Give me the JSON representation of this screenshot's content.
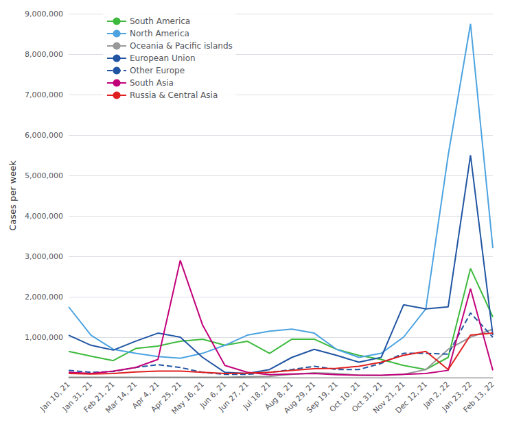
{
  "chart_data": {
    "type": "line",
    "ylabel": "Cases per week",
    "categories": [
      "Jan 10, 21",
      "Jan 31, 21",
      "Feb 21, 21",
      "Mar 14, 21",
      "Apr 4, 21",
      "Apr 25, 21",
      "May 16, 21",
      "Jun 6, 21",
      "Jun 27, 21",
      "Jul 18, 21",
      "Aug 8, 21",
      "Aug 29, 21",
      "Sep 19, 21",
      "Oct 10, 21",
      "Oct 31, 21",
      "Nov 21, 21",
      "Dec 12, 21",
      "Jan 2, 22",
      "Jan 23, 22",
      "Feb 13, 22"
    ],
    "series": [
      {
        "name": "South America",
        "color": "#3dba3d",
        "line_style": "solid",
        "values": [
          650000,
          530000,
          420000,
          720000,
          780000,
          900000,
          950000,
          800000,
          900000,
          600000,
          950000,
          950000,
          700000,
          550000,
          450000,
          300000,
          200000,
          500000,
          2700000,
          1500000
        ]
      },
      {
        "name": "North America",
        "color": "#4ca3e0",
        "line_style": "solid",
        "values": [
          1750000,
          1050000,
          700000,
          600000,
          520000,
          480000,
          600000,
          800000,
          1050000,
          1150000,
          1200000,
          1100000,
          700000,
          500000,
          600000,
          1000000,
          1700000,
          5500000,
          8750000,
          3200000
        ]
      },
      {
        "name": "Oceania & Pacific islands",
        "color": "#999999",
        "line_style": "solid",
        "values": [
          10000,
          10000,
          10000,
          10000,
          10000,
          10000,
          10000,
          10000,
          20000,
          30000,
          80000,
          120000,
          100000,
          60000,
          50000,
          80000,
          200000,
          700000,
          1000000,
          1200000
        ]
      },
      {
        "name": "European Union",
        "color": "#2155a3",
        "line_style": "solid",
        "values": [
          1050000,
          800000,
          680000,
          900000,
          1100000,
          1000000,
          500000,
          130000,
          100000,
          200000,
          500000,
          700000,
          550000,
          380000,
          500000,
          1800000,
          1700000,
          1750000,
          5500000,
          1050000
        ]
      },
      {
        "name": "Other Europe",
        "color": "#2155a3",
        "line_style": "dashed",
        "values": [
          180000,
          130000,
          150000,
          250000,
          320000,
          250000,
          130000,
          80000,
          80000,
          130000,
          200000,
          280000,
          200000,
          200000,
          350000,
          600000,
          600000,
          580000,
          1600000,
          1000000
        ]
      },
      {
        "name": "South Asia",
        "color": "#c2007a",
        "line_style": "solid",
        "values": [
          130000,
          100000,
          160000,
          250000,
          450000,
          2900000,
          1300000,
          300000,
          130000,
          70000,
          90000,
          100000,
          70000,
          60000,
          60000,
          80000,
          100000,
          180000,
          2200000,
          180000
        ]
      },
      {
        "name": "Russia & Central Asia",
        "color": "#e02020",
        "line_style": "solid",
        "values": [
          100000,
          90000,
          100000,
          140000,
          160000,
          160000,
          130000,
          100000,
          110000,
          130000,
          180000,
          220000,
          230000,
          280000,
          380000,
          550000,
          650000,
          200000,
          1050000,
          1100000
        ]
      }
    ],
    "ylim": [
      0,
      9000000
    ],
    "yticks": [
      {
        "value": 0,
        "label": ""
      },
      {
        "value": 1000000,
        "label": "1,000,000"
      },
      {
        "value": 2000000,
        "label": "2,000,000"
      },
      {
        "value": 3000000,
        "label": "3,000,000"
      },
      {
        "value": 4000000,
        "label": "4,000,000"
      },
      {
        "value": 5000000,
        "label": "5,000,000"
      },
      {
        "value": 6000000,
        "label": "6,000,000"
      },
      {
        "value": 7000000,
        "label": "7,000,000"
      },
      {
        "value": 8000000,
        "label": "8,000,000"
      },
      {
        "value": 9000000,
        "label": "9,000,000"
      }
    ],
    "grid": true,
    "legend": "upper left"
  }
}
